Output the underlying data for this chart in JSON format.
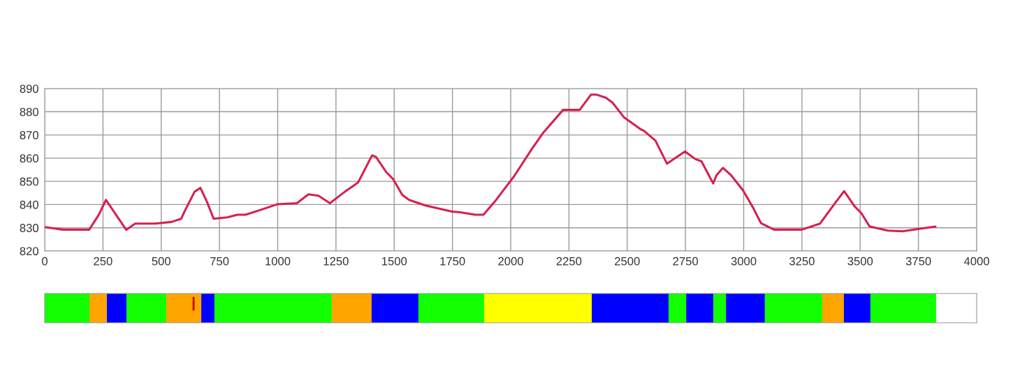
{
  "chart_data": [
    {
      "type": "line",
      "grid": true,
      "xlim": [
        0,
        4000
      ],
      "ylim": [
        820,
        890
      ],
      "xticks": [
        0,
        250,
        500,
        750,
        1000,
        1250,
        1500,
        1750,
        2000,
        2250,
        2500,
        2750,
        3000,
        3250,
        3500,
        3750,
        4000
      ],
      "yticks": [
        820,
        830,
        840,
        850,
        860,
        870,
        880,
        890
      ],
      "x": [
        0,
        78,
        191,
        232,
        263,
        306,
        350,
        388,
        473,
        544,
        586,
        600,
        643,
        668,
        696,
        725,
        784,
        827,
        862,
        926,
        997,
        1082,
        1132,
        1175,
        1224,
        1288,
        1345,
        1405,
        1422,
        1465,
        1496,
        1535,
        1564,
        1634,
        1748,
        1783,
        1847,
        1883,
        1932,
        1975,
        2013,
        2091,
        2140,
        2225,
        2296,
        2345,
        2367,
        2409,
        2437,
        2487,
        2557,
        2572,
        2621,
        2671,
        2748,
        2791,
        2819,
        2869,
        2883,
        2911,
        2946,
        2996,
        3038,
        3074,
        3130,
        3250,
        3328,
        3392,
        3431,
        3477,
        3505,
        3540,
        3618,
        3682,
        3759,
        3823
      ],
      "series": [
        {
          "color": "#d6204f",
          "values": [
            830.3,
            829.2,
            829.2,
            835.6,
            842,
            835.6,
            829.1,
            831.8,
            831.8,
            832.5,
            833.9,
            837,
            845.5,
            847.2,
            841.3,
            833.9,
            834.5,
            835.6,
            835.6,
            837.7,
            840.1,
            840.6,
            844.4,
            843.8,
            840.6,
            845.5,
            849.5,
            861.2,
            860.5,
            854.1,
            850.9,
            844.1,
            842,
            839.6,
            837,
            836.7,
            835.6,
            835.6,
            841.3,
            847,
            852,
            864,
            871,
            880.8,
            880.8,
            887.4,
            887.4,
            886,
            883.9,
            877.5,
            872.5,
            871.8,
            867.6,
            857.6,
            862.9,
            859.7,
            858.6,
            849.1,
            852.6,
            855.8,
            852.6,
            846.3,
            839.1,
            832,
            829.2,
            829.2,
            831.8,
            840.6,
            845.8,
            839.1,
            836.3,
            830.6,
            828.8,
            828.5,
            829.6,
            830.5
          ]
        }
      ]
    },
    {
      "type": "bar",
      "orientation": "horizontal",
      "stacked": true,
      "xlim": [
        0,
        4000
      ],
      "categories": [
        null
      ],
      "series": [
        {
          "color": "#11ff00",
          "values": [
            192
          ]
        },
        {
          "color": "#ffa500",
          "values": [
            75
          ]
        },
        {
          "color": "#0000ff",
          "values": [
            84
          ]
        },
        {
          "color": "#11ff00",
          "values": [
            171
          ]
        },
        {
          "color": "#ffa500",
          "values": [
            150
          ]
        },
        {
          "color": "#0000ff",
          "values": [
            57
          ]
        },
        {
          "color": "#11ff00",
          "values": [
            503
          ]
        },
        {
          "color": "#ffa500",
          "values": [
            171
          ]
        },
        {
          "color": "#0000ff",
          "values": [
            201
          ]
        },
        {
          "color": "#11ff00",
          "values": [
            282
          ]
        },
        {
          "color": "#ffff00",
          "values": [
            462
          ]
        },
        {
          "color": "#0000ff",
          "values": [
            330
          ]
        },
        {
          "color": "#11ff00",
          "values": [
            75
          ]
        },
        {
          "color": "#0000ff",
          "values": [
            117
          ]
        },
        {
          "color": "#11ff00",
          "values": [
            54
          ]
        },
        {
          "color": "#0000ff",
          "values": [
            167
          ]
        },
        {
          "color": "#11ff00",
          "values": [
            246
          ]
        },
        {
          "color": "#ffa500",
          "values": [
            93
          ]
        },
        {
          "color": "#0000ff",
          "values": [
            114
          ]
        },
        {
          "color": "#11ff00",
          "values": [
            282
          ]
        }
      ],
      "ref_lines": [
        {
          "axis": "x",
          "value": 639,
          "color": "#cc0000"
        }
      ]
    }
  ]
}
